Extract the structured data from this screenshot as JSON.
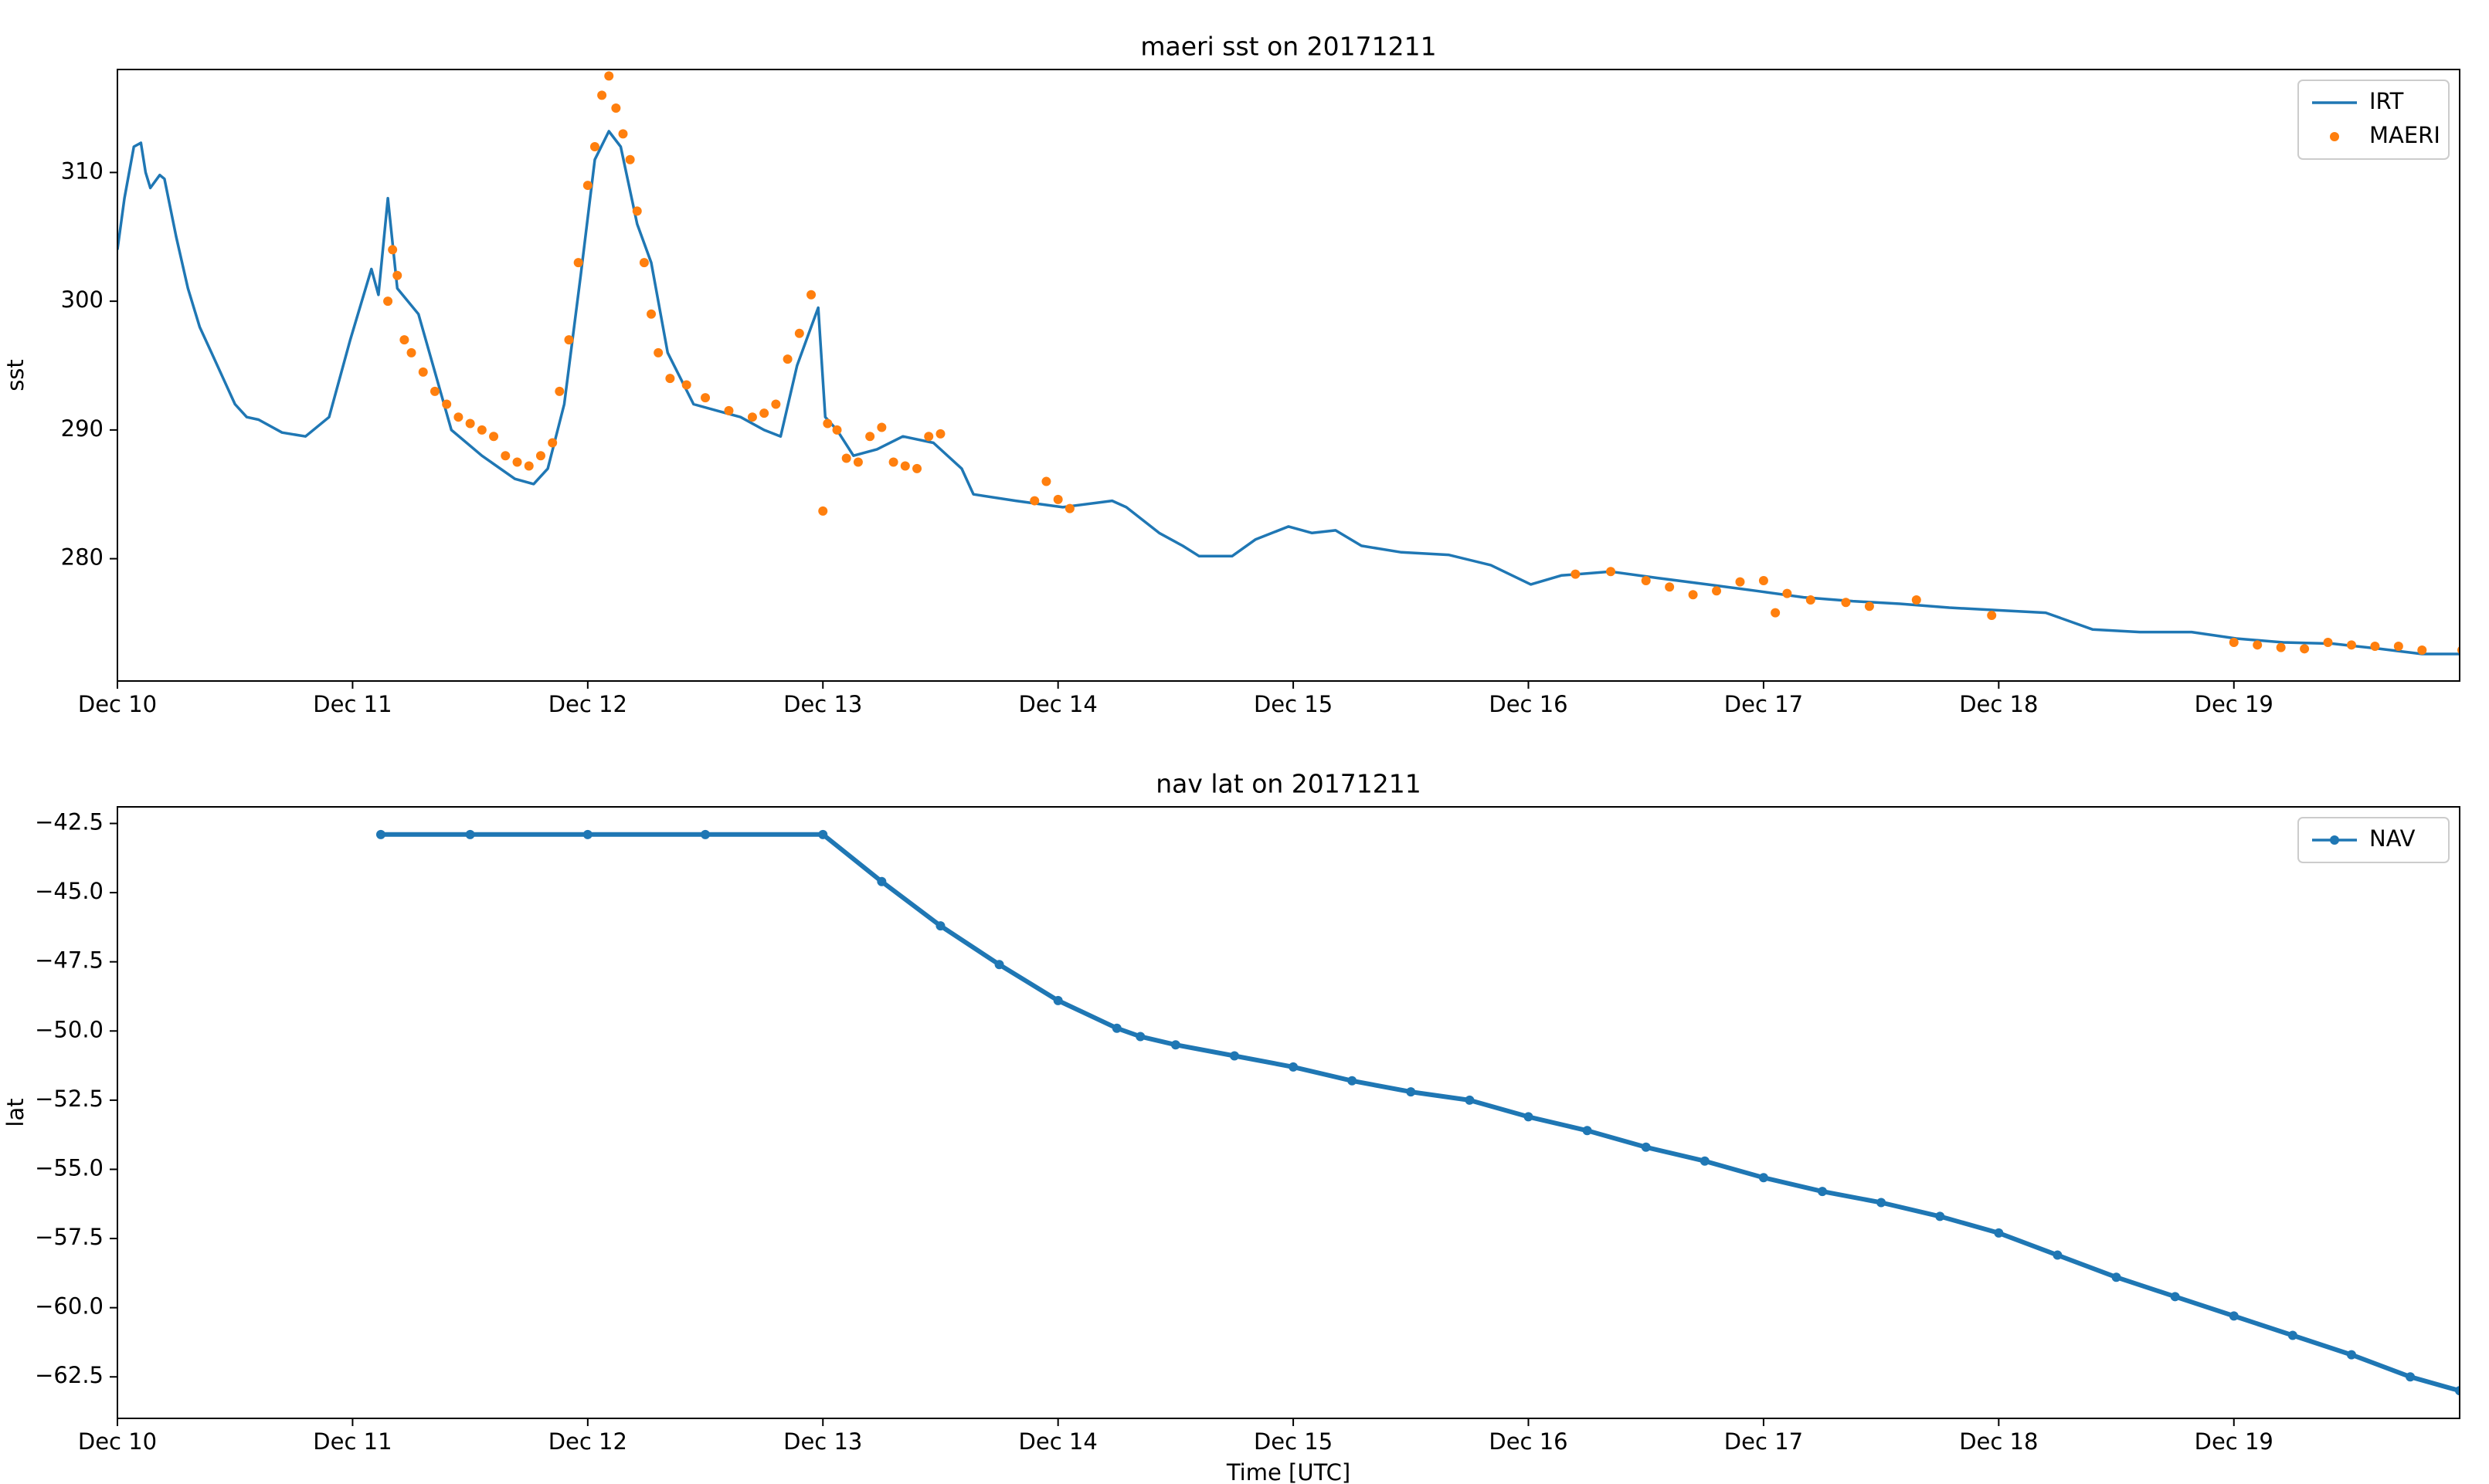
{
  "chart_data": [
    {
      "type": "line",
      "title": "maeri sst on 20171211",
      "ylabel": "sst",
      "legend": "upper right",
      "grid": false,
      "xlim": [
        10,
        19.96
      ],
      "ylim": [
        270.5,
        318
      ],
      "xticks": [
        {
          "value": 10,
          "label": "Dec 10"
        },
        {
          "value": 11,
          "label": "Dec 11"
        },
        {
          "value": 12,
          "label": "Dec 12"
        },
        {
          "value": 13,
          "label": "Dec 13"
        },
        {
          "value": 14,
          "label": "Dec 14"
        },
        {
          "value": 15,
          "label": "Dec 15"
        },
        {
          "value": 16,
          "label": "Dec 16"
        },
        {
          "value": 17,
          "label": "Dec 17"
        },
        {
          "value": 18,
          "label": "Dec 18"
        },
        {
          "value": 19,
          "label": "Dec 19"
        }
      ],
      "yticks": [
        280,
        290,
        300,
        310
      ],
      "series": [
        {
          "name": "IRT",
          "color": "#1f77b4",
          "line": true,
          "marker": false,
          "x": [
            10.0,
            10.03,
            10.07,
            10.1,
            10.12,
            10.14,
            10.18,
            10.2,
            10.25,
            10.3,
            10.35,
            10.4,
            10.45,
            10.5,
            10.55,
            10.6,
            10.7,
            10.8,
            10.9,
            10.99,
            11.08,
            11.11,
            11.15,
            11.19,
            11.28,
            11.42,
            11.55,
            11.69,
            11.77,
            11.83,
            11.9,
            11.97,
            12.03,
            12.09,
            12.14,
            12.21,
            12.27,
            12.34,
            12.45,
            12.55,
            12.65,
            12.75,
            12.82,
            12.89,
            12.95,
            12.98,
            13.01,
            13.06,
            13.13,
            13.23,
            13.34,
            13.47,
            13.59,
            13.64,
            13.82,
            14.02,
            14.23,
            14.29,
            14.43,
            14.53,
            14.6,
            14.74,
            14.84,
            14.98,
            15.08,
            15.18,
            15.29,
            15.46,
            15.66,
            15.84,
            16.01,
            16.14,
            16.35,
            16.55,
            16.76,
            16.97,
            17.17,
            17.38,
            17.58,
            17.79,
            17.99,
            18.2,
            18.4,
            18.6,
            18.82,
            19.01,
            19.21,
            19.42,
            19.62,
            19.8,
            19.96
          ],
          "values": [
            304,
            308,
            312,
            312.3,
            310,
            308.8,
            309.8,
            309.5,
            305,
            301,
            298,
            296,
            294,
            292,
            291,
            290.8,
            289.8,
            289.5,
            291,
            297,
            302.5,
            300.5,
            308,
            301,
            299,
            290,
            288,
            286.2,
            285.8,
            287,
            292,
            302,
            311,
            313.2,
            312,
            306,
            303,
            296,
            292,
            291.5,
            291,
            290,
            289.5,
            295,
            298,
            299.5,
            291,
            290,
            288,
            288.5,
            289.5,
            289,
            287,
            285,
            284.5,
            284,
            284.5,
            284,
            282,
            281,
            280.2,
            280.2,
            281.5,
            282.5,
            282,
            282.2,
            281,
            280.5,
            280.3,
            279.5,
            278,
            278.7,
            279,
            278.5,
            278,
            277.5,
            277,
            276.7,
            276.5,
            276.2,
            276,
            275.8,
            274.5,
            274.3,
            274.3,
            273.8,
            273.5,
            273.4,
            273,
            272.6,
            272.6
          ]
        },
        {
          "name": "MAERI",
          "color": "#ff7f0e",
          "line": false,
          "marker": true,
          "x": [
            11.15,
            11.17,
            11.19,
            11.22,
            11.25,
            11.3,
            11.35,
            11.4,
            11.45,
            11.5,
            11.55,
            11.6,
            11.65,
            11.7,
            11.75,
            11.8,
            11.85,
            11.88,
            11.92,
            11.96,
            12.0,
            12.03,
            12.06,
            12.09,
            12.12,
            12.15,
            12.18,
            12.21,
            12.24,
            12.27,
            12.3,
            12.35,
            12.42,
            12.5,
            12.6,
            12.7,
            12.75,
            12.8,
            12.85,
            12.9,
            12.95,
            13.0,
            13.02,
            13.06,
            13.1,
            13.15,
            13.2,
            13.25,
            13.3,
            13.35,
            13.4,
            13.45,
            13.5,
            13.9,
            13.95,
            14.0,
            14.05,
            16.2,
            16.35,
            16.5,
            16.6,
            16.7,
            16.8,
            16.9,
            17.0,
            17.05,
            17.1,
            17.2,
            17.35,
            17.45,
            17.65,
            17.97,
            19.0,
            19.1,
            19.2,
            19.3,
            19.4,
            19.5,
            19.6,
            19.7,
            19.8,
            19.97
          ],
          "values": [
            300,
            304,
            302,
            297,
            296,
            294.5,
            293,
            292,
            291,
            290.5,
            290,
            289.5,
            288,
            287.5,
            287.2,
            288,
            289,
            293,
            297,
            303,
            309,
            312,
            316,
            317.5,
            315,
            313,
            311,
            307,
            303,
            299,
            296,
            294,
            293.5,
            292.5,
            291.5,
            291,
            291.3,
            292,
            295.5,
            297.5,
            300.5,
            283.7,
            290.5,
            290,
            287.8,
            287.5,
            289.5,
            290.2,
            287.5,
            287.2,
            287,
            289.5,
            289.7,
            284.5,
            286,
            284.6,
            283.9,
            278.8,
            279,
            278.3,
            277.8,
            277.2,
            277.5,
            278.2,
            278.3,
            275.8,
            277.3,
            276.8,
            276.6,
            276.3,
            276.8,
            275.6,
            273.5,
            273.3,
            273.1,
            273,
            273.5,
            273.3,
            273.2,
            273.2,
            272.9,
            272.9
          ]
        }
      ]
    },
    {
      "type": "line",
      "title": "nav lat on 20171211",
      "ylabel": "lat",
      "xlabel": "Time [UTC]",
      "legend": "upper right",
      "grid": false,
      "xlim": [
        10,
        19.96
      ],
      "ylim": [
        -64.0,
        -41.9
      ],
      "xticks": [
        {
          "value": 10,
          "label": "Dec 10"
        },
        {
          "value": 11,
          "label": "Dec 11"
        },
        {
          "value": 12,
          "label": "Dec 12"
        },
        {
          "value": 13,
          "label": "Dec 13"
        },
        {
          "value": 14,
          "label": "Dec 14"
        },
        {
          "value": 15,
          "label": "Dec 15"
        },
        {
          "value": 16,
          "label": "Dec 16"
        },
        {
          "value": 17,
          "label": "Dec 17"
        },
        {
          "value": 18,
          "label": "Dec 18"
        },
        {
          "value": 19,
          "label": "Dec 19"
        }
      ],
      "yticks": [
        {
          "value": -42.5,
          "label": "−42.5"
        },
        {
          "value": -45.0,
          "label": "−45.0"
        },
        {
          "value": -47.5,
          "label": "−47.5"
        },
        {
          "value": -50.0,
          "label": "−50.0"
        },
        {
          "value": -52.5,
          "label": "−52.5"
        },
        {
          "value": -55.0,
          "label": "−55.0"
        },
        {
          "value": -57.5,
          "label": "−57.5"
        },
        {
          "value": -60.0,
          "label": "−60.0"
        },
        {
          "value": -62.5,
          "label": "−62.5"
        }
      ],
      "series": [
        {
          "name": "NAV",
          "color": "#1f77b4",
          "line": true,
          "marker": true,
          "x": [
            11.12,
            11.5,
            12.0,
            12.5,
            13.0,
            13.25,
            13.5,
            13.75,
            14.0,
            14.25,
            14.35,
            14.5,
            14.75,
            15.0,
            15.25,
            15.5,
            15.75,
            16.0,
            16.25,
            16.5,
            16.75,
            17.0,
            17.25,
            17.5,
            17.75,
            18.0,
            18.25,
            18.5,
            18.75,
            19.0,
            19.25,
            19.5,
            19.75,
            19.96
          ],
          "values": [
            -42.9,
            -42.9,
            -42.9,
            -42.9,
            -42.9,
            -44.6,
            -46.2,
            -47.6,
            -48.9,
            -49.9,
            -50.2,
            -50.5,
            -50.9,
            -51.3,
            -51.8,
            -52.2,
            -52.5,
            -53.1,
            -53.6,
            -54.2,
            -54.7,
            -55.3,
            -55.8,
            -56.2,
            -56.7,
            -57.3,
            -58.1,
            -58.9,
            -59.6,
            -60.3,
            -61.0,
            -61.7,
            -62.5,
            -63.0
          ]
        }
      ]
    }
  ]
}
